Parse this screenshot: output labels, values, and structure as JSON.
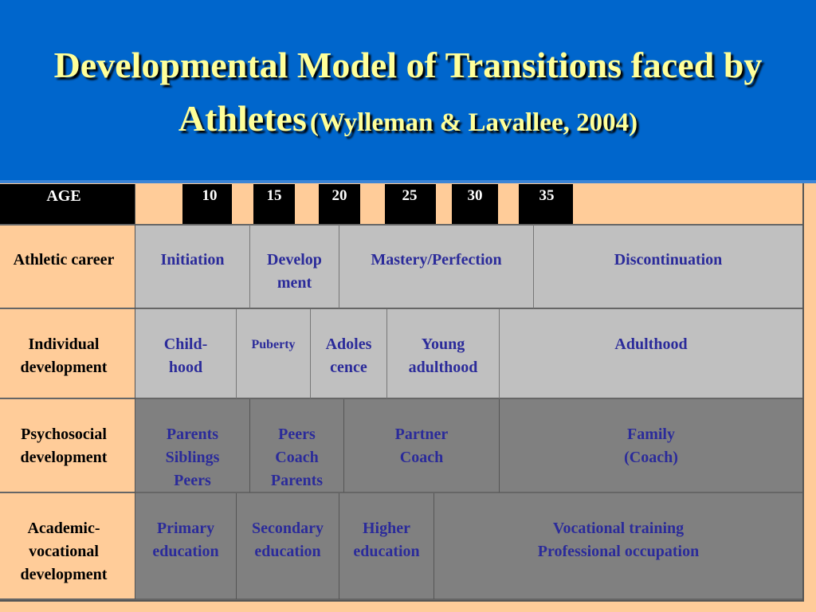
{
  "slide": {
    "title_line1": "Developmental Model of Transitions faced by",
    "title_line2_main": "Athletes",
    "title_citation": "(Wylleman & Lavallee, 2004)"
  },
  "table": {
    "age_header": "AGE",
    "ages": [
      "10",
      "15",
      "20",
      "25",
      "30",
      "35"
    ],
    "rows": [
      {
        "label": "Athletic career",
        "cells": [
          "Initiation",
          "Develop\nment",
          "Mastery/Perfection",
          "Discontinuation"
        ]
      },
      {
        "label": "Individual\ndevelopment",
        "cells": [
          "Child-\nhood",
          "Puberty",
          "Adoles\ncence",
          "Young\nadulthood",
          "Adulthood"
        ]
      },
      {
        "label": "Psychosocial\ndevelopment",
        "cells": [
          "Parents\nSiblings\nPeers",
          "Peers\nCoach\nParents",
          "Partner\nCoach",
          "Family\n(Coach)"
        ]
      },
      {
        "label": "Academic-\nvocational\ndevelopment",
        "cells": [
          "Primary\neducation",
          "Secondary\neducation",
          "Higher\neducation",
          "Vocational training\nProfessional occupation"
        ]
      }
    ]
  },
  "colors": {
    "header_bg": "#0066cc",
    "title_text": "#ffff99",
    "table_bg": "#ffcc99",
    "cell_text": "#2b2b9a",
    "light_gray": "#c0c0c0",
    "dark_gray": "#808080"
  }
}
